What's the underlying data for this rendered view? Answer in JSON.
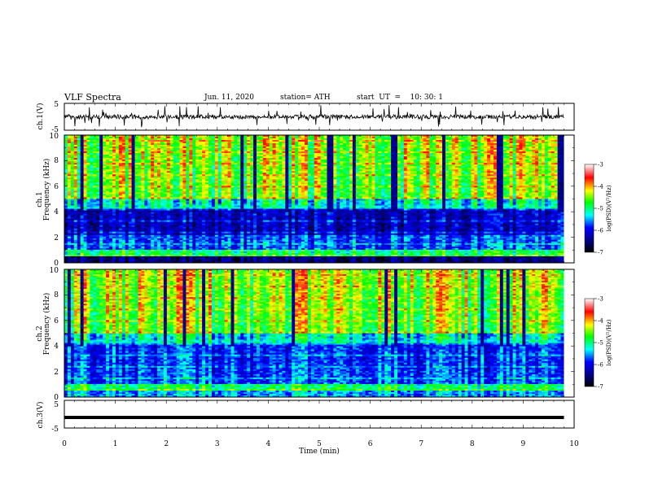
{
  "header": {
    "title": "VLF  Spectra",
    "date": "Jun. 11, 2020",
    "station": "station= ATH",
    "start_ut": "start  UT  =    10: 30: 1"
  },
  "chart_data": [
    {
      "type": "line",
      "panel": "ch1-waveform",
      "ylabel": "ch.1(V)",
      "ylim": [
        -5,
        5
      ],
      "yticks": [
        "5",
        "-5"
      ],
      "xlim": [
        0,
        10
      ],
      "description_series": "noise trace around 0 V, end at 9.8 min"
    },
    {
      "type": "heatmap",
      "panel": "ch1-spectrogram",
      "ylabel": "ch.1\nFrequency  (kHz)",
      "ylim": [
        0,
        10
      ],
      "yticks": [
        "0",
        "2",
        "4",
        "6",
        "8",
        "10"
      ],
      "xlim": [
        0,
        10
      ],
      "data_end_min": 9.8,
      "colorbar": {
        "label": "log(PSD)(V²/Hz)",
        "range": [
          -7,
          -3
        ],
        "ticks": [
          "-3",
          "-4",
          "-5",
          "-6",
          "-7"
        ]
      }
    },
    {
      "type": "heatmap",
      "panel": "ch2-spectrogram",
      "ylabel": "ch.2\nFrequency  (kHz)",
      "ylim": [
        0,
        10
      ],
      "yticks": [
        "0",
        "2",
        "4",
        "6",
        "8",
        "10"
      ],
      "xlim": [
        0,
        10
      ],
      "data_end_min": 9.8,
      "colorbar": {
        "label": "log(PSD)(V²/Hz)",
        "range": [
          -7,
          -3
        ],
        "ticks": [
          "-3",
          "-4",
          "-5",
          "-6",
          "-7"
        ]
      }
    },
    {
      "type": "line",
      "panel": "ch3-waveform",
      "ylabel": "ch.3(V)",
      "ylim": [
        -5,
        5
      ],
      "yticks": [
        "5",
        "-5"
      ],
      "xlim": [
        0,
        10
      ],
      "xticks": [
        "0",
        "1",
        "2",
        "3",
        "4",
        "5",
        "6",
        "7",
        "8",
        "9",
        "10"
      ],
      "xlabel": "Time  (min)",
      "value_level_v": 0,
      "data_end_min": 9.8
    }
  ],
  "colors": {
    "colormap": [
      "#000000",
      "#00008c",
      "#0000ff",
      "#00ffff",
      "#00ff00",
      "#ffff00",
      "#ff0000",
      "#ffffff"
    ]
  }
}
